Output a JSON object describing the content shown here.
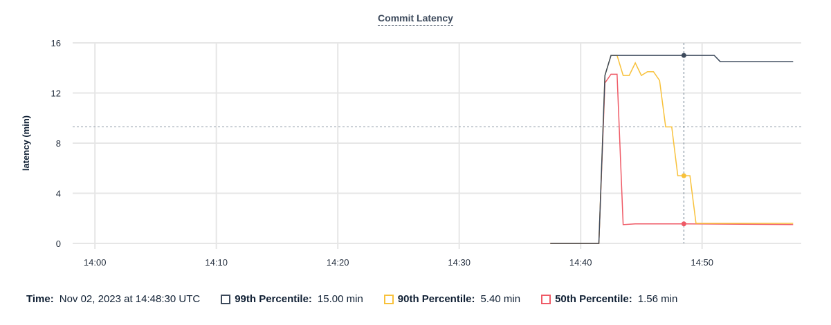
{
  "chart_data": {
    "type": "line",
    "title": "Commit Latency",
    "xlabel": "",
    "ylabel": "latency (min)",
    "xlim": [
      "13:58:10",
      "14:58:10"
    ],
    "ylim": [
      0,
      16
    ],
    "xticks": [
      "14:00",
      "14:10",
      "14:20",
      "14:30",
      "14:40",
      "14:50"
    ],
    "yticks": [
      0,
      4,
      8,
      12,
      16
    ],
    "grid": true,
    "threshold": 9.3,
    "cursor_time": "14:48:30",
    "series": [
      {
        "name": "99th Percentile",
        "color": "#3d4a5c",
        "x": [
          "14:37:30",
          "14:41:30",
          "14:42:00",
          "14:42:30",
          "14:51:00",
          "14:51:30",
          "14:57:30"
        ],
        "y": [
          0,
          0,
          13.4,
          15,
          15,
          14.5,
          14.5
        ]
      },
      {
        "name": "90th Percentile",
        "color": "#f8c13a",
        "x": [
          "14:37:30",
          "14:41:30",
          "14:42:00",
          "14:42:30",
          "14:43:00",
          "14:43:30",
          "14:44:00",
          "14:44:30",
          "14:45:00",
          "14:45:30",
          "14:46:00",
          "14:46:30",
          "14:47:00",
          "14:47:30",
          "14:48:00",
          "14:49:00",
          "14:49:30",
          "14:57:30"
        ],
        "y": [
          0,
          0,
          13.4,
          15,
          15,
          13.4,
          13.4,
          14.4,
          13.4,
          13.7,
          13.7,
          13,
          9.3,
          9.3,
          5.4,
          5.4,
          1.6,
          1.6
        ]
      },
      {
        "name": "50th Percentile",
        "color": "#ef5a66",
        "x": [
          "14:37:30",
          "14:41:30",
          "14:42:00",
          "14:42:30",
          "14:43:00",
          "14:43:30",
          "14:44:30",
          "14:48:30",
          "14:57:30"
        ],
        "y": [
          0,
          0,
          12.8,
          13.5,
          13.5,
          1.5,
          1.56,
          1.56,
          1.5
        ]
      }
    ]
  },
  "legend": {
    "time_label": "Time:",
    "time_value": "Nov 02, 2023 at 14:48:30 UTC",
    "items": [
      {
        "label": "99th Percentile:",
        "value": "15.00 min",
        "color": "#3d4a5c"
      },
      {
        "label": "90th Percentile:",
        "value": "5.40 min",
        "color": "#f8c13a"
      },
      {
        "label": "50th Percentile:",
        "value": "1.56 min",
        "color": "#ef5a66"
      }
    ]
  }
}
